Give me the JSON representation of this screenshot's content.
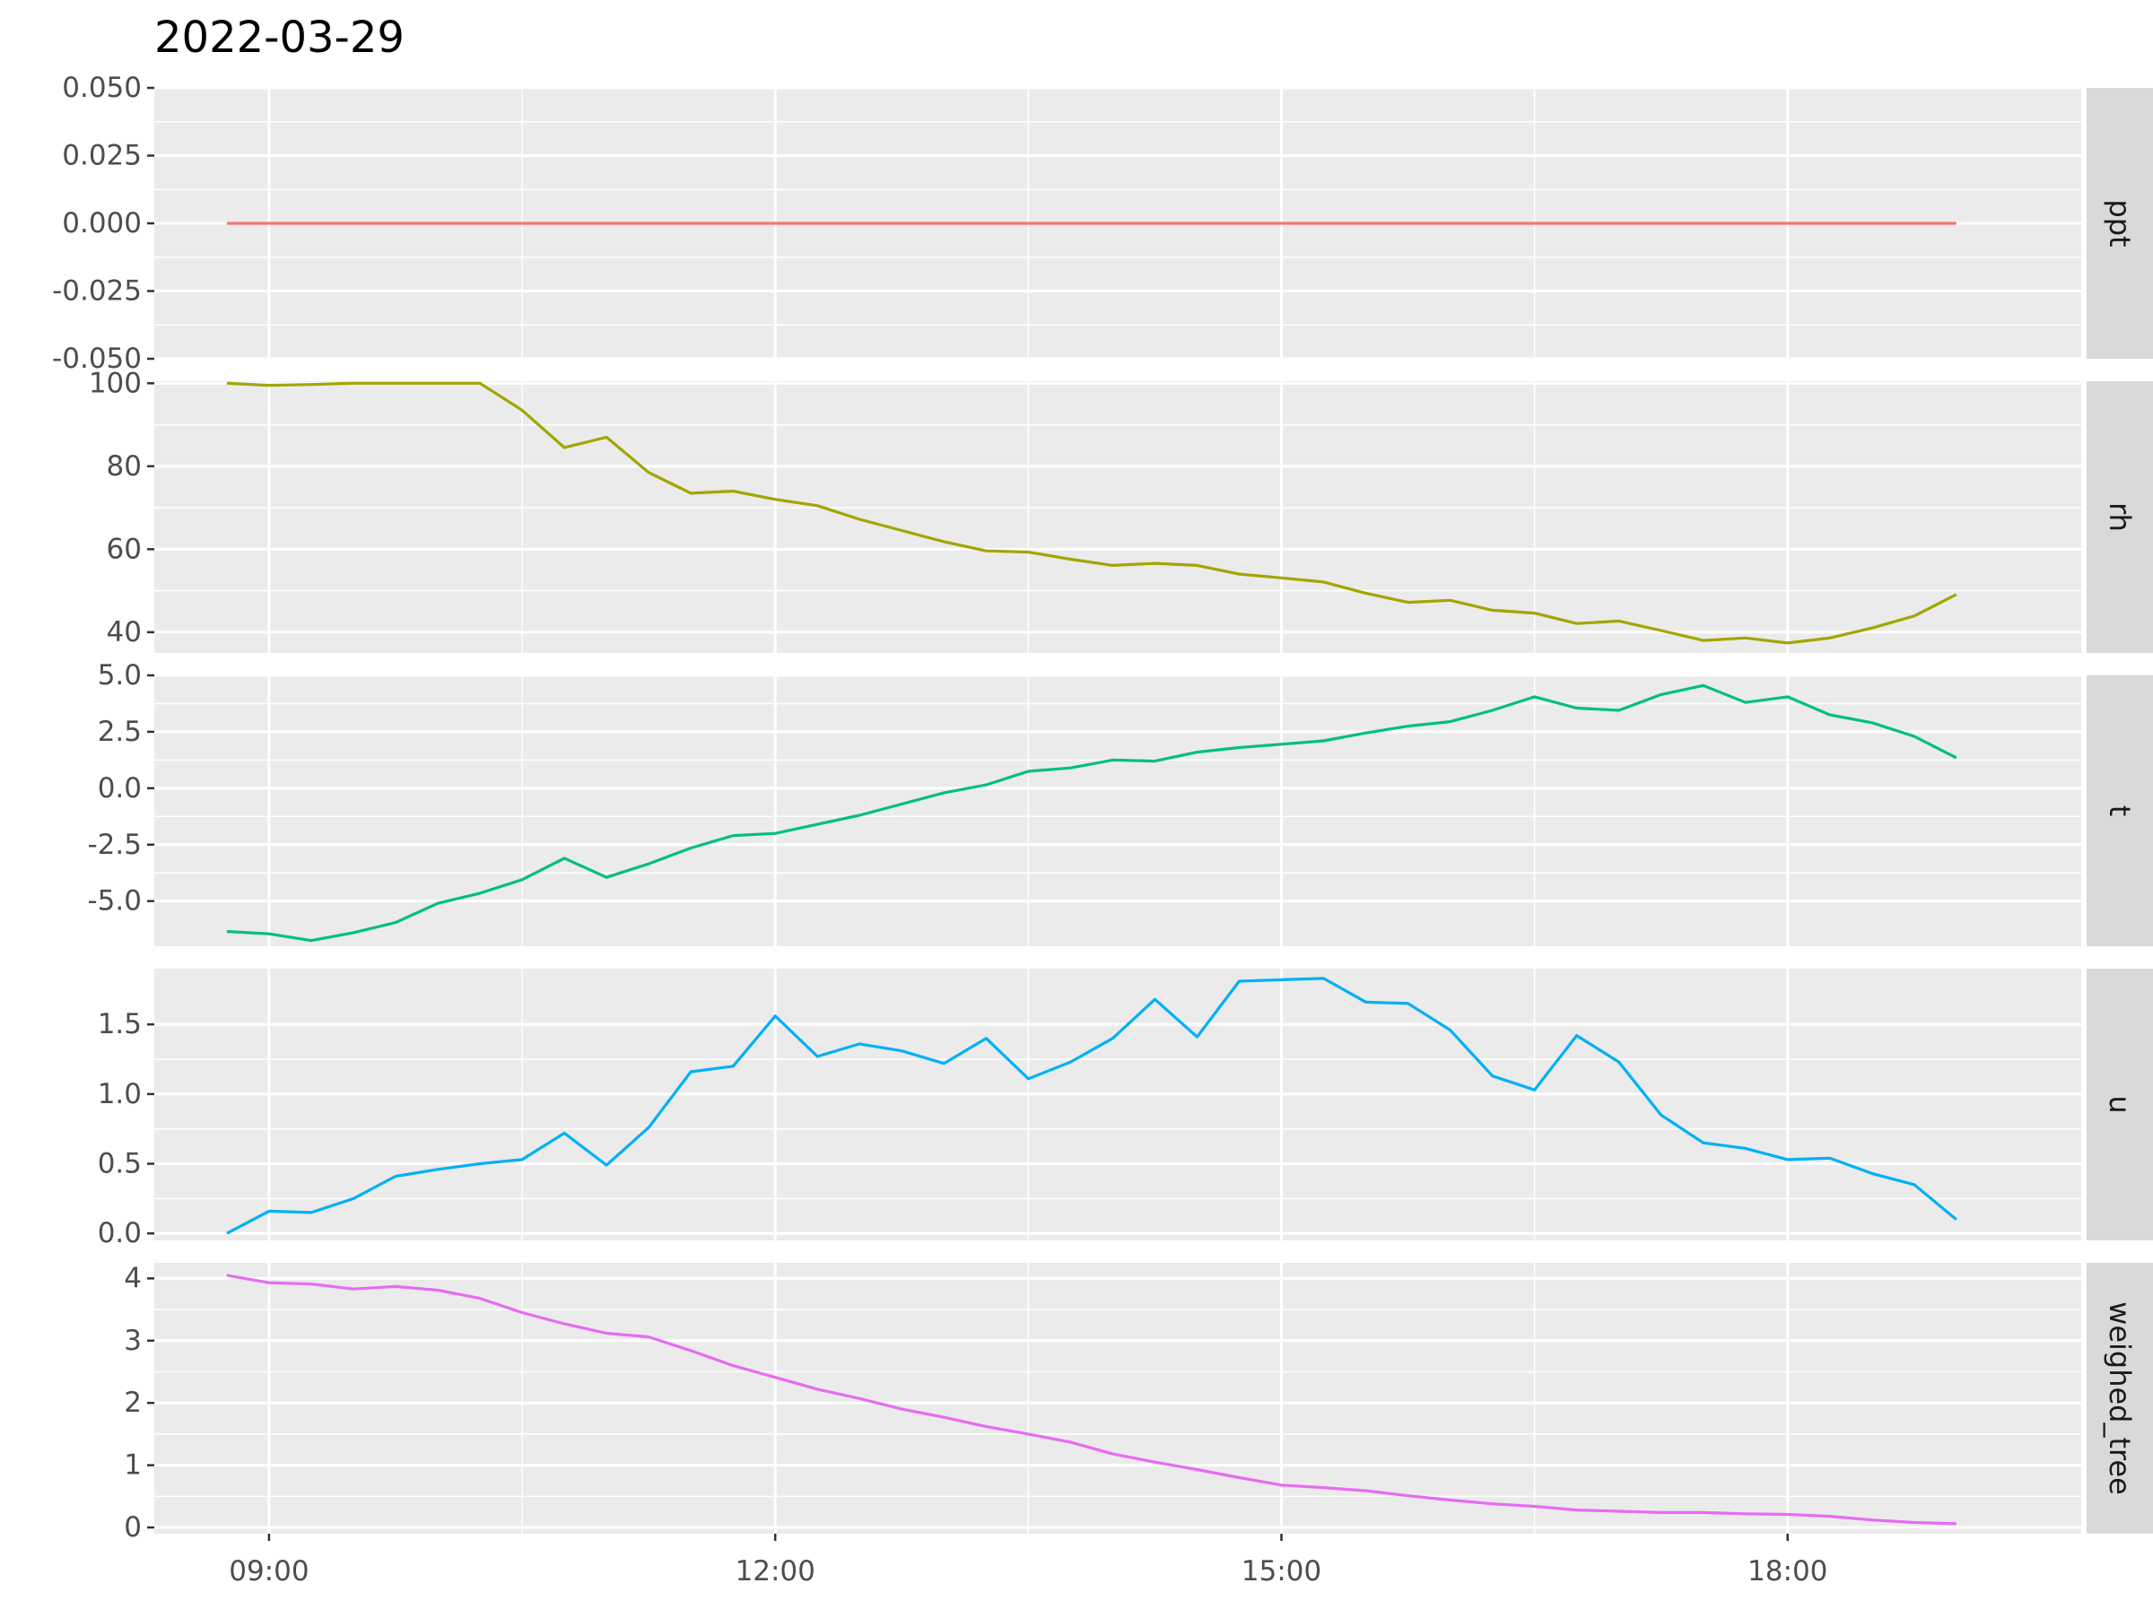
{
  "chart_data": {
    "type": "line",
    "title": "2022-03-29",
    "xlabel": "",
    "ylabel": "",
    "grid": true,
    "legend": "none",
    "x_range_hours": [
      8.32,
      19.74
    ],
    "x_ticks": [
      {
        "value": 9,
        "label": "09:00"
      },
      {
        "value": 12,
        "label": "12:00"
      },
      {
        "value": 15,
        "label": "15:00"
      },
      {
        "value": 18,
        "label": "18:00"
      }
    ],
    "x_hours": [
      8.75,
      9.0,
      9.25,
      9.5,
      9.75,
      10.0,
      10.25,
      10.5,
      10.75,
      11.0,
      11.25,
      11.5,
      11.75,
      12.0,
      12.25,
      12.5,
      12.75,
      13.0,
      13.25,
      13.5,
      13.75,
      14.0,
      14.25,
      14.5,
      14.75,
      15.0,
      15.25,
      15.5,
      15.75,
      16.0,
      16.25,
      16.5,
      16.75,
      17.0,
      17.25,
      17.5,
      17.75,
      18.0,
      18.25,
      18.5,
      18.75,
      19.0
    ],
    "panels": [
      {
        "strip": "ppt",
        "color": "#F8766D",
        "ylim": [
          -0.05,
          0.05
        ],
        "y_ticks": [
          {
            "value": 0.05,
            "label": "0.050"
          },
          {
            "value": 0.025,
            "label": "0.025"
          },
          {
            "value": 0.0,
            "label": "0.000"
          },
          {
            "value": -0.025,
            "label": "-0.025"
          },
          {
            "value": -0.05,
            "label": "-0.050"
          }
        ],
        "values": [
          0,
          0,
          0,
          0,
          0,
          0,
          0,
          0,
          0,
          0,
          0,
          0,
          0,
          0,
          0,
          0,
          0,
          0,
          0,
          0,
          0,
          0,
          0,
          0,
          0,
          0,
          0,
          0,
          0,
          0,
          0,
          0,
          0,
          0,
          0,
          0,
          0,
          0,
          0,
          0,
          0,
          0
        ]
      },
      {
        "strip": "rh",
        "color": "#A3A500",
        "ylim": [
          35,
          100.5
        ],
        "y_ticks": [
          {
            "value": 100,
            "label": "100"
          },
          {
            "value": 80,
            "label": "80"
          },
          {
            "value": 60,
            "label": "60"
          },
          {
            "value": 40,
            "label": "40"
          }
        ],
        "values": [
          100.0,
          99.5,
          99.7,
          100.0,
          100.0,
          100.0,
          100.0,
          93.5,
          84.5,
          87.0,
          78.5,
          73.5,
          74.0,
          72.0,
          70.5,
          67.2,
          64.5,
          61.8,
          59.6,
          59.3,
          57.6,
          56.1,
          56.6,
          56.1,
          54.0,
          53.1,
          52.1,
          49.4,
          47.2,
          47.7,
          45.3,
          44.6,
          42.1,
          42.7,
          40.4,
          38.0,
          38.6,
          37.4,
          38.6,
          41.0,
          43.9,
          49.1
        ]
      },
      {
        "strip": "t",
        "color": "#00BF7D",
        "ylim": [
          -7.0,
          5.0
        ],
        "y_ticks": [
          {
            "value": 5.0,
            "label": "5.0"
          },
          {
            "value": 2.5,
            "label": "2.5"
          },
          {
            "value": 0.0,
            "label": "0.0"
          },
          {
            "value": -2.5,
            "label": "-2.5"
          },
          {
            "value": -5.0,
            "label": "-5.0"
          }
        ],
        "values": [
          -6.35,
          -6.45,
          -6.75,
          -6.4,
          -5.95,
          -5.1,
          -4.65,
          -4.05,
          -3.1,
          -3.95,
          -3.35,
          -2.65,
          -2.1,
          -2.0,
          -1.6,
          -1.2,
          -0.7,
          -0.2,
          0.15,
          0.75,
          0.9,
          1.25,
          1.2,
          1.6,
          1.8,
          1.95,
          2.1,
          2.45,
          2.75,
          2.95,
          3.45,
          4.05,
          3.55,
          3.45,
          4.15,
          4.55,
          3.8,
          4.05,
          3.25,
          2.9,
          2.3,
          1.35
        ]
      },
      {
        "strip": "u",
        "color": "#00B0F6",
        "ylim": [
          -0.05,
          1.9
        ],
        "y_ticks": [
          {
            "value": 1.5,
            "label": "1.5"
          },
          {
            "value": 1.0,
            "label": "1.0"
          },
          {
            "value": 0.5,
            "label": "0.5"
          },
          {
            "value": 0.0,
            "label": "0.0"
          }
        ],
        "values": [
          0.0,
          0.16,
          0.15,
          0.25,
          0.41,
          0.46,
          0.5,
          0.53,
          0.72,
          0.49,
          0.76,
          1.16,
          1.2,
          1.56,
          1.27,
          1.36,
          1.31,
          1.22,
          1.4,
          1.11,
          1.23,
          1.4,
          1.68,
          1.41,
          1.81,
          1.82,
          1.83,
          1.66,
          1.65,
          1.46,
          1.13,
          1.03,
          1.42,
          1.23,
          0.85,
          0.65,
          0.61,
          0.53,
          0.54,
          0.43,
          0.35,
          0.1
        ]
      },
      {
        "strip": "weighed_tree",
        "color": "#E76BF3",
        "ylim": [
          -0.1,
          4.25
        ],
        "y_ticks": [
          {
            "value": 4,
            "label": "4"
          },
          {
            "value": 3,
            "label": "3"
          },
          {
            "value": 2,
            "label": "2"
          },
          {
            "value": 1,
            "label": "1"
          },
          {
            "value": 0,
            "label": "0"
          }
        ],
        "values": [
          4.05,
          3.93,
          3.91,
          3.83,
          3.87,
          3.81,
          3.68,
          3.45,
          3.27,
          3.12,
          3.06,
          2.84,
          2.6,
          2.41,
          2.22,
          2.07,
          1.9,
          1.77,
          1.62,
          1.5,
          1.37,
          1.18,
          1.05,
          0.93,
          0.8,
          0.68,
          0.64,
          0.59,
          0.51,
          0.44,
          0.38,
          0.34,
          0.28,
          0.26,
          0.24,
          0.24,
          0.22,
          0.21,
          0.18,
          0.12,
          0.08,
          0.06
        ]
      }
    ]
  }
}
